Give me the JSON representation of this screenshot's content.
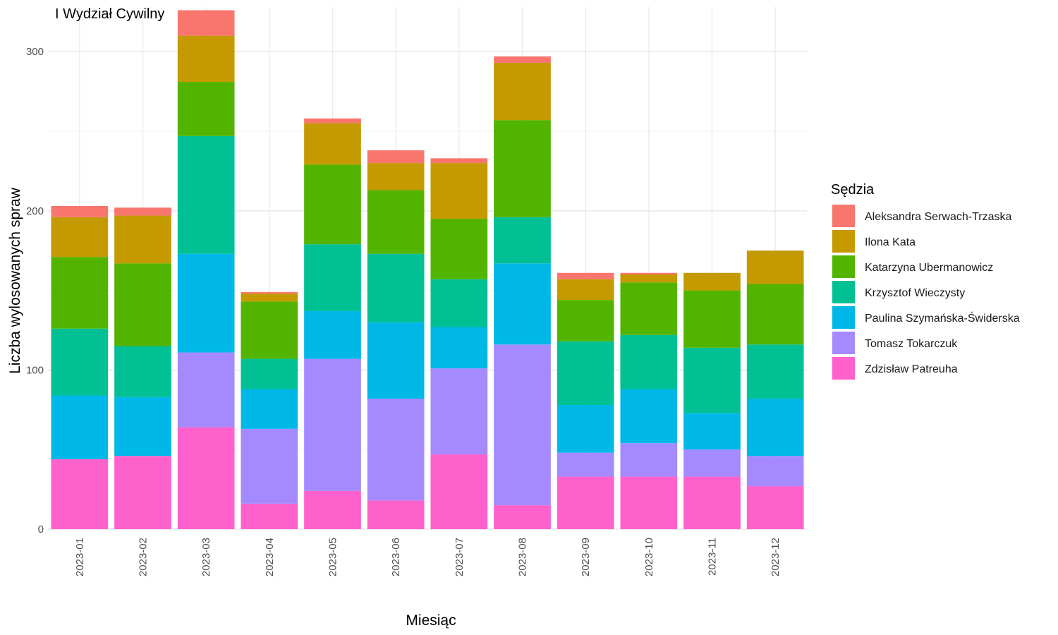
{
  "chart_data": {
    "type": "bar",
    "stacked": true,
    "title": "I Wydział Cywilny",
    "xlabel": "Miesiąc",
    "ylabel": "Liczba wylosowanych spraw",
    "ylim": [
      0,
      328
    ],
    "yticks": [
      0,
      100,
      200,
      300
    ],
    "grid": true,
    "legend": {
      "title": "Sędzia",
      "position": "right"
    },
    "categories": [
      "2023-01",
      "2023-02",
      "2023-03",
      "2023-04",
      "2023-05",
      "2023-06",
      "2023-07",
      "2023-08",
      "2023-09",
      "2023-10",
      "2023-11",
      "2023-12"
    ],
    "series": [
      {
        "name": "Zdzisław Patreuha",
        "color": "#FF61CC",
        "values": [
          44,
          46,
          64,
          16,
          24,
          18,
          47,
          15,
          33,
          33,
          33,
          27
        ]
      },
      {
        "name": "Tomasz Tokarczuk",
        "color": "#A58AFF",
        "values": [
          0,
          0,
          47,
          47,
          83,
          64,
          54,
          101,
          15,
          21,
          17,
          19
        ]
      },
      {
        "name": "Paulina Szymańska-Świderska",
        "color": "#00B8E7",
        "values": [
          40,
          37,
          62,
          25,
          30,
          48,
          26,
          51,
          30,
          34,
          23,
          36
        ]
      },
      {
        "name": "Krzysztof Wieczysty",
        "color": "#00C094",
        "values": [
          42,
          32,
          74,
          19,
          42,
          43,
          30,
          29,
          40,
          34,
          41,
          34
        ]
      },
      {
        "name": "Katarzyna Ubermanowicz",
        "color": "#53B400",
        "values": [
          45,
          52,
          34,
          36,
          50,
          40,
          38,
          61,
          26,
          33,
          36,
          38
        ]
      },
      {
        "name": "Ilona Kata",
        "color": "#C49A00",
        "values": [
          25,
          30,
          29,
          5,
          26,
          17,
          35,
          36,
          13,
          5,
          11,
          21
        ]
      },
      {
        "name": "Aleksandra Serwach-Trzaska",
        "color": "#F8766D",
        "values": [
          7,
          5,
          16,
          1,
          3,
          8,
          3,
          4,
          4,
          1,
          0,
          0
        ]
      }
    ]
  }
}
